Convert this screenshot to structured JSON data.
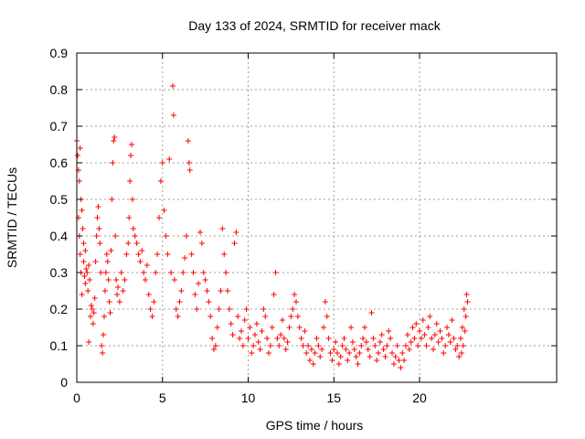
{
  "chart_data": {
    "type": "scatter",
    "title": "Day 133 of 2024, SRMTID for receiver mack",
    "xlabel": "GPS time / hours",
    "ylabel": "SRMTID / TECUs",
    "xlim": [
      0,
      28
    ],
    "ylim": [
      0,
      0.9
    ],
    "xticks": [
      0,
      5,
      10,
      15,
      20
    ],
    "yticks": [
      0,
      0.1,
      0.2,
      0.3,
      0.4,
      0.5,
      0.6,
      0.7,
      0.8,
      0.9
    ],
    "grid": true,
    "marker": "+",
    "color": "#ff0000",
    "series": [
      {
        "name": "SRMTID",
        "points": [
          [
            0.0,
            0.66
          ],
          [
            0.05,
            0.62
          ],
          [
            0.1,
            0.58
          ],
          [
            0.1,
            0.45
          ],
          [
            0.15,
            0.55
          ],
          [
            0.15,
            0.4
          ],
          [
            0.2,
            0.35
          ],
          [
            0.2,
            0.64
          ],
          [
            0.25,
            0.5
          ],
          [
            0.25,
            0.3
          ],
          [
            0.3,
            0.47
          ],
          [
            0.3,
            0.24
          ],
          [
            0.35,
            0.42
          ],
          [
            0.4,
            0.38
          ],
          [
            0.4,
            0.33
          ],
          [
            0.45,
            0.29
          ],
          [
            0.5,
            0.36
          ],
          [
            0.5,
            0.27
          ],
          [
            0.55,
            0.31
          ],
          [
            0.6,
            0.3
          ],
          [
            0.65,
            0.25
          ],
          [
            0.7,
            0.32
          ],
          [
            0.7,
            0.11
          ],
          [
            0.75,
            0.28
          ],
          [
            0.8,
            0.18
          ],
          [
            0.85,
            0.21
          ],
          [
            0.9,
            0.2
          ],
          [
            0.95,
            0.16
          ],
          [
            1.0,
            0.19
          ],
          [
            1.05,
            0.23
          ],
          [
            1.1,
            0.33
          ],
          [
            1.15,
            0.4
          ],
          [
            1.2,
            0.45
          ],
          [
            1.25,
            0.48
          ],
          [
            1.3,
            0.42
          ],
          [
            1.35,
            0.38
          ],
          [
            1.4,
            0.3
          ],
          [
            1.45,
            0.1
          ],
          [
            1.5,
            0.08
          ],
          [
            1.55,
            0.13
          ],
          [
            1.6,
            0.18
          ],
          [
            1.65,
            0.25
          ],
          [
            1.7,
            0.3
          ],
          [
            1.75,
            0.35
          ],
          [
            1.8,
            0.33
          ],
          [
            1.85,
            0.28
          ],
          [
            1.9,
            0.22
          ],
          [
            1.95,
            0.19
          ],
          [
            2.0,
            0.36
          ],
          [
            2.05,
            0.5
          ],
          [
            2.1,
            0.6
          ],
          [
            2.15,
            0.66
          ],
          [
            2.2,
            0.67
          ],
          [
            2.25,
            0.4
          ],
          [
            2.3,
            0.28
          ],
          [
            2.35,
            0.24
          ],
          [
            2.4,
            0.26
          ],
          [
            2.5,
            0.22
          ],
          [
            2.6,
            0.3
          ],
          [
            2.7,
            0.25
          ],
          [
            2.8,
            0.28
          ],
          [
            2.9,
            0.35
          ],
          [
            3.0,
            0.38
          ],
          [
            3.05,
            0.45
          ],
          [
            3.1,
            0.55
          ],
          [
            3.15,
            0.62
          ],
          [
            3.2,
            0.65
          ],
          [
            3.25,
            0.5
          ],
          [
            3.3,
            0.42
          ],
          [
            3.4,
            0.4
          ],
          [
            3.5,
            0.38
          ],
          [
            3.6,
            0.35
          ],
          [
            3.7,
            0.33
          ],
          [
            3.8,
            0.36
          ],
          [
            3.9,
            0.3
          ],
          [
            4.0,
            0.28
          ],
          [
            4.1,
            0.32
          ],
          [
            4.2,
            0.24
          ],
          [
            4.3,
            0.2
          ],
          [
            4.4,
            0.18
          ],
          [
            4.5,
            0.22
          ],
          [
            4.6,
            0.3
          ],
          [
            4.7,
            0.35
          ],
          [
            4.8,
            0.45
          ],
          [
            4.9,
            0.55
          ],
          [
            5.0,
            0.6
          ],
          [
            5.1,
            0.47
          ],
          [
            5.2,
            0.4
          ],
          [
            5.3,
            0.35
          ],
          [
            5.4,
            0.61
          ],
          [
            5.5,
            0.3
          ],
          [
            5.6,
            0.81
          ],
          [
            5.65,
            0.73
          ],
          [
            5.7,
            0.28
          ],
          [
            5.8,
            0.2
          ],
          [
            5.9,
            0.18
          ],
          [
            6.0,
            0.22
          ],
          [
            6.1,
            0.25
          ],
          [
            6.2,
            0.3
          ],
          [
            6.3,
            0.34
          ],
          [
            6.4,
            0.4
          ],
          [
            6.5,
            0.66
          ],
          [
            6.55,
            0.6
          ],
          [
            6.6,
            0.58
          ],
          [
            6.7,
            0.35
          ],
          [
            6.8,
            0.3
          ],
          [
            6.9,
            0.24
          ],
          [
            7.0,
            0.2
          ],
          [
            7.1,
            0.27
          ],
          [
            7.2,
            0.41
          ],
          [
            7.3,
            0.38
          ],
          [
            7.4,
            0.3
          ],
          [
            7.5,
            0.28
          ],
          [
            7.6,
            0.25
          ],
          [
            7.7,
            0.22
          ],
          [
            7.8,
            0.18
          ],
          [
            7.9,
            0.12
          ],
          [
            8.0,
            0.09
          ],
          [
            8.1,
            0.1
          ],
          [
            8.2,
            0.15
          ],
          [
            8.3,
            0.2
          ],
          [
            8.4,
            0.25
          ],
          [
            8.5,
            0.42
          ],
          [
            8.6,
            0.35
          ],
          [
            8.7,
            0.3
          ],
          [
            8.8,
            0.25
          ],
          [
            8.9,
            0.2
          ],
          [
            9.0,
            0.16
          ],
          [
            9.1,
            0.13
          ],
          [
            9.2,
            0.38
          ],
          [
            9.3,
            0.41
          ],
          [
            9.4,
            0.18
          ],
          [
            9.5,
            0.12
          ],
          [
            9.6,
            0.14
          ],
          [
            9.7,
            0.1
          ],
          [
            9.8,
            0.17
          ],
          [
            9.9,
            0.2
          ],
          [
            10.0,
            0.12
          ],
          [
            10.1,
            0.15
          ],
          [
            10.2,
            0.08
          ],
          [
            10.3,
            0.1
          ],
          [
            10.4,
            0.13
          ],
          [
            10.5,
            0.16
          ],
          [
            10.6,
            0.11
          ],
          [
            10.7,
            0.09
          ],
          [
            10.8,
            0.14
          ],
          [
            10.9,
            0.2
          ],
          [
            11.0,
            0.18
          ],
          [
            11.1,
            0.12
          ],
          [
            11.2,
            0.08
          ],
          [
            11.3,
            0.1
          ],
          [
            11.4,
            0.15
          ],
          [
            11.5,
            0.24
          ],
          [
            11.6,
            0.3
          ],
          [
            11.7,
            0.12
          ],
          [
            11.8,
            0.1
          ],
          [
            11.9,
            0.13
          ],
          [
            12.0,
            0.17
          ],
          [
            12.1,
            0.12
          ],
          [
            12.2,
            0.09
          ],
          [
            12.3,
            0.11
          ],
          [
            12.4,
            0.15
          ],
          [
            12.5,
            0.18
          ],
          [
            12.6,
            0.2
          ],
          [
            12.7,
            0.24
          ],
          [
            12.8,
            0.22
          ],
          [
            12.9,
            0.18
          ],
          [
            13.0,
            0.15
          ],
          [
            13.1,
            0.12
          ],
          [
            13.2,
            0.1
          ],
          [
            13.3,
            0.14
          ],
          [
            13.4,
            0.08
          ],
          [
            13.5,
            0.1
          ],
          [
            13.6,
            0.06
          ],
          [
            13.7,
            0.09
          ],
          [
            13.8,
            0.05
          ],
          [
            13.9,
            0.08
          ],
          [
            14.0,
            0.12
          ],
          [
            14.1,
            0.1
          ],
          [
            14.2,
            0.07
          ],
          [
            14.3,
            0.09
          ],
          [
            14.4,
            0.15
          ],
          [
            14.5,
            0.22
          ],
          [
            14.6,
            0.18
          ],
          [
            14.7,
            0.12
          ],
          [
            14.8,
            0.08
          ],
          [
            14.9,
            0.06
          ],
          [
            15.0,
            0.09
          ],
          [
            15.1,
            0.11
          ],
          [
            15.2,
            0.08
          ],
          [
            15.3,
            0.05
          ],
          [
            15.4,
            0.07
          ],
          [
            15.5,
            0.1
          ],
          [
            15.6,
            0.12
          ],
          [
            15.7,
            0.09
          ],
          [
            15.8,
            0.06
          ],
          [
            15.9,
            0.08
          ],
          [
            16.0,
            0.15
          ],
          [
            16.1,
            0.11
          ],
          [
            16.2,
            0.09
          ],
          [
            16.3,
            0.07
          ],
          [
            16.4,
            0.05
          ],
          [
            16.5,
            0.08
          ],
          [
            16.6,
            0.1
          ],
          [
            16.7,
            0.12
          ],
          [
            16.8,
            0.15
          ],
          [
            16.9,
            0.11
          ],
          [
            17.0,
            0.09
          ],
          [
            17.1,
            0.07
          ],
          [
            17.2,
            0.19
          ],
          [
            17.3,
            0.12
          ],
          [
            17.4,
            0.1
          ],
          [
            17.5,
            0.06
          ],
          [
            17.6,
            0.08
          ],
          [
            17.7,
            0.11
          ],
          [
            17.8,
            0.13
          ],
          [
            17.9,
            0.09
          ],
          [
            18.0,
            0.07
          ],
          [
            18.1,
            0.1
          ],
          [
            18.2,
            0.14
          ],
          [
            18.3,
            0.12
          ],
          [
            18.4,
            0.08
          ],
          [
            18.5,
            0.05
          ],
          [
            18.6,
            0.07
          ],
          [
            18.7,
            0.1
          ],
          [
            18.8,
            0.06
          ],
          [
            18.9,
            0.04
          ],
          [
            19.0,
            0.08
          ],
          [
            19.1,
            0.06
          ],
          [
            19.2,
            0.1
          ],
          [
            19.3,
            0.13
          ],
          [
            19.4,
            0.09
          ],
          [
            19.5,
            0.11
          ],
          [
            19.6,
            0.15
          ],
          [
            19.7,
            0.12
          ],
          [
            19.8,
            0.16
          ],
          [
            19.9,
            0.1
          ],
          [
            20.0,
            0.14
          ],
          [
            20.1,
            0.12
          ],
          [
            20.2,
            0.17
          ],
          [
            20.3,
            0.13
          ],
          [
            20.4,
            0.1
          ],
          [
            20.5,
            0.15
          ],
          [
            20.6,
            0.18
          ],
          [
            20.7,
            0.12
          ],
          [
            20.8,
            0.09
          ],
          [
            20.9,
            0.13
          ],
          [
            21.0,
            0.16
          ],
          [
            21.1,
            0.11
          ],
          [
            21.2,
            0.14
          ],
          [
            21.3,
            0.12
          ],
          [
            21.4,
            0.08
          ],
          [
            21.5,
            0.1
          ],
          [
            21.6,
            0.15
          ],
          [
            21.7,
            0.13
          ],
          [
            21.8,
            0.11
          ],
          [
            21.9,
            0.17
          ],
          [
            22.0,
            0.12
          ],
          [
            22.1,
            0.09
          ],
          [
            22.2,
            0.1
          ],
          [
            22.3,
            0.07
          ],
          [
            22.4,
            0.12
          ],
          [
            22.5,
            0.15
          ],
          [
            22.6,
            0.2
          ],
          [
            22.7,
            0.18
          ],
          [
            22.8,
            0.22
          ],
          [
            22.75,
            0.24
          ],
          [
            22.65,
            0.14
          ],
          [
            22.55,
            0.1
          ],
          [
            22.45,
            0.08
          ]
        ]
      }
    ]
  }
}
